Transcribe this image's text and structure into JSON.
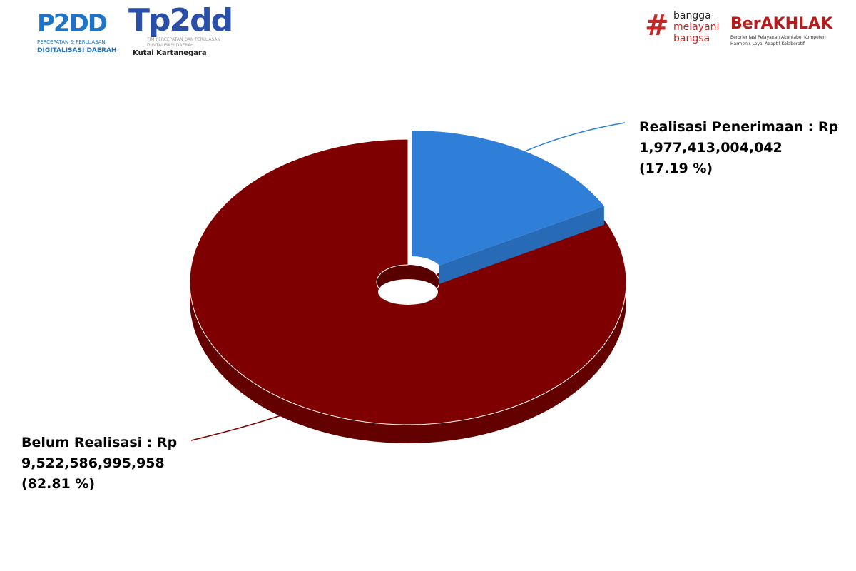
{
  "logos": {
    "p2dd": {
      "mark": "P2DD",
      "line1": "PERCEPATAN & PERLUASAN",
      "line2": "DIGITALISASI DAERAH"
    },
    "tp2dd": {
      "mark": "Tp2dd",
      "sub1": "TIM PERCEPATAN DAN PERLUASAN",
      "sub2": "DIGITALISASI DAERAH",
      "region": "Kutai Kartanegara"
    },
    "bangga": {
      "hash": "#",
      "l1": "bangga",
      "l2": "melayani",
      "l3": "bangsa"
    },
    "berakhlak": {
      "mark": "BerAKHLAK",
      "l1": "Berorientasi Pelayanan Akuntabel Kompeten",
      "l2": "Harmonis Loyal Adaptif Kolaboratif"
    }
  },
  "chart_data": {
    "type": "pie",
    "style": "3d-donut",
    "slices": [
      {
        "label": "Realisasi Penerimaan : Rp",
        "amount": "1,977,413,004,042",
        "pct_text": "(17.19 %)",
        "value": 17.19,
        "color": "#2f7fd8"
      },
      {
        "label": "Belum Realisasi : Rp",
        "amount": "9,522,586,995,958",
        "pct_text": "(82.81 %)",
        "value": 82.81,
        "color": "#7f0000"
      }
    ]
  }
}
